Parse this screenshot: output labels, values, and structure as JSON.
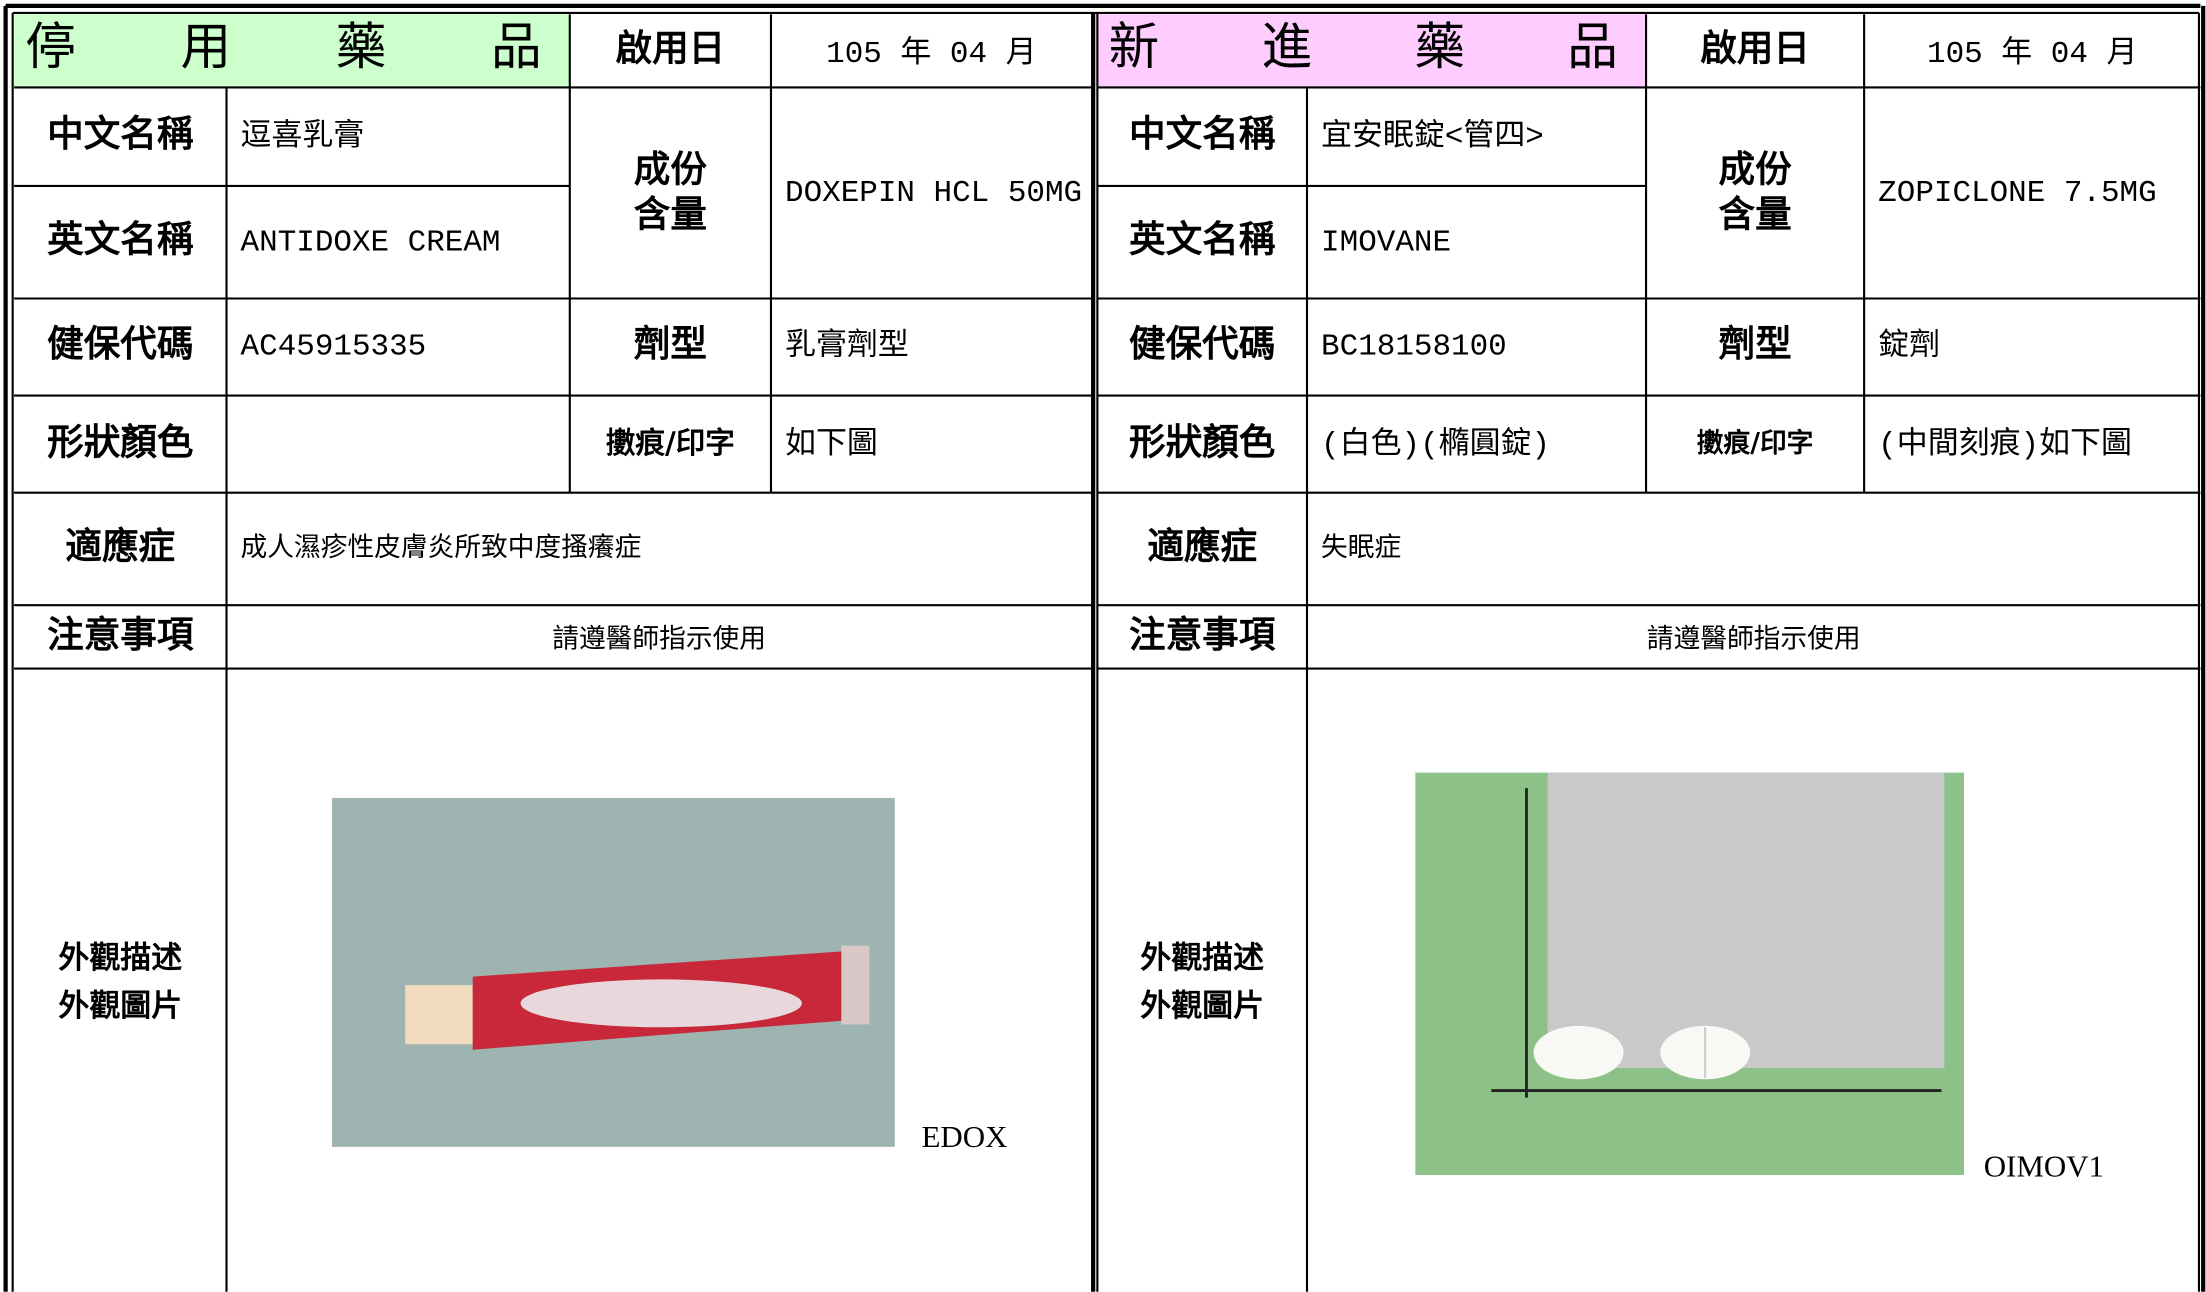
{
  "panels": [
    {
      "title": "停用藥品",
      "start_label": "啟用日",
      "start_date": "105 年 04 月",
      "cn_label": "中文名稱",
      "cn_name": "逗喜乳膏",
      "en_label": "英文名稱",
      "en_name": "ANTIDOXE CREAM",
      "ingredient_label": [
        "成份",
        "含量"
      ],
      "ingredient": "DOXEPIN HCL 50MG",
      "code_label": "健保代碼",
      "code": "AC45915335",
      "form_label": "劑型",
      "form": "乳膏劑型",
      "shape_label": "形狀顏色",
      "mark_label": "擻痕/印字",
      "mark": "如下圖",
      "indication_label": "適應症",
      "indication": "成人濕疹性皮膚炎所致中度搔癢症",
      "notice_label": "注意事項",
      "notice": "請遵醫師指示使用",
      "appearance_label": [
        "外觀描述",
        "外觀圖片"
      ],
      "image_caption": "EDOX"
    },
    {
      "title": "新進藥品",
      "start_label": "啟用日",
      "start_date": "105 年 04 月",
      "cn_label": "中文名稱",
      "cn_name": "宜安眠錠<管四>",
      "en_label": "英文名稱",
      "en_name": "IMOVANE",
      "ingredient_label": [
        "成份",
        "含量"
      ],
      "ingredient": "ZOPICLONE 7.5MG",
      "code_label": "健保代碼",
      "code": "BC18158100",
      "form_label": "劑型",
      "form": "錠劑",
      "shape_label": "形狀顏色",
      "shape": "(白色)(橢圓錠)",
      "mark_label": "擻痕/印字",
      "mark": "(中間刻痕)如下圖",
      "indication_label": "適應症",
      "indication": "失眠症",
      "notice_label": "注意事項",
      "notice": "請遵醫師指示使用",
      "appearance_label": [
        "外觀描述",
        "外觀圖片"
      ],
      "image_caption": "OIMOV1"
    }
  ]
}
